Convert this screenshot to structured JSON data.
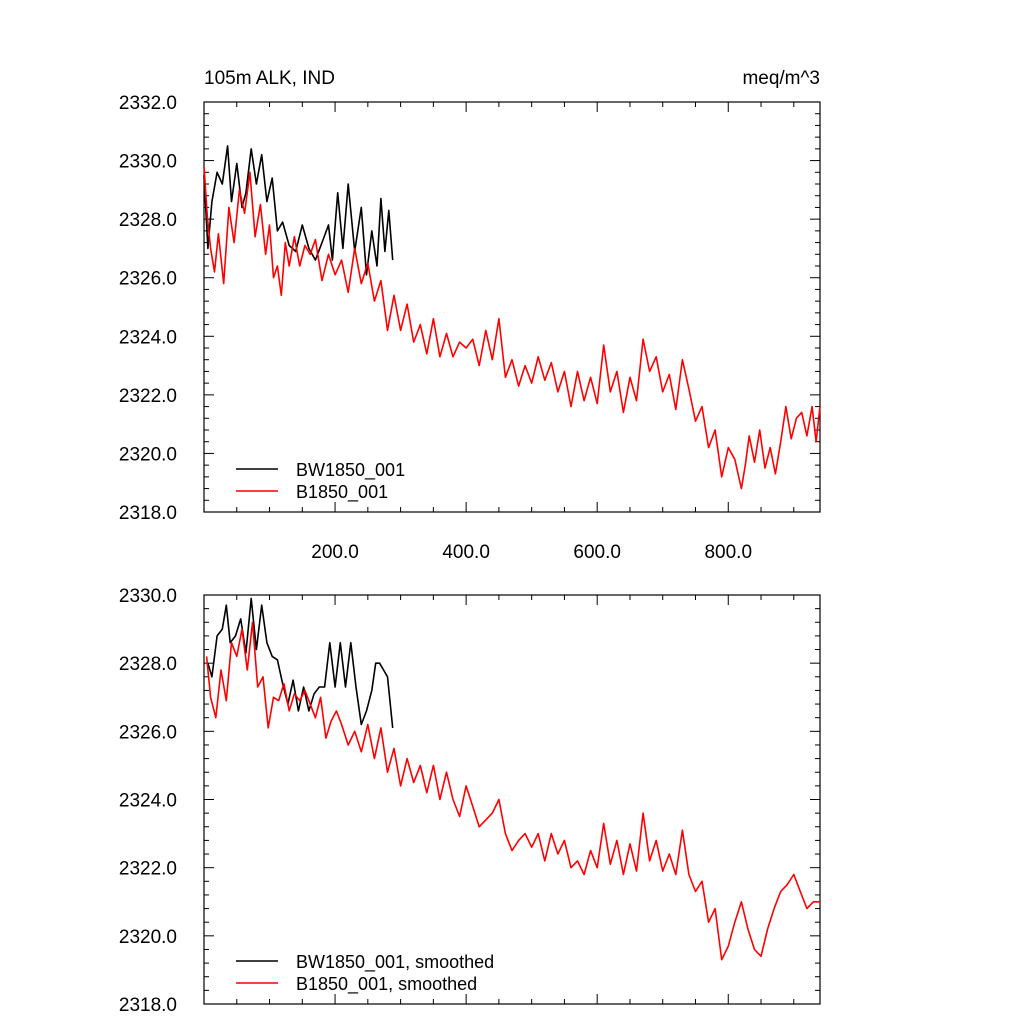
{
  "chart_data": [
    {
      "type": "line",
      "title_left": "105m ALK, IND",
      "title_right": "meq/m^3",
      "xlim": [
        0,
        940
      ],
      "ylim": [
        2318,
        2332
      ],
      "xticks": [
        200,
        400,
        600,
        800
      ],
      "xtick_labels": [
        "200.0",
        "400.0",
        "600.0",
        "800.0"
      ],
      "yticks": [
        2318,
        2320,
        2322,
        2324,
        2326,
        2328,
        2330,
        2332
      ],
      "ytick_labels": [
        "2318.0",
        "2320.0",
        "2322.0",
        "2324.0",
        "2326.0",
        "2328.0",
        "2330.0",
        "2332.0"
      ],
      "legend_position": "bottom-left",
      "series": [
        {
          "name": "BW1850_001",
          "color": "#000000",
          "x": [
            0,
            6,
            12,
            20,
            28,
            36,
            42,
            50,
            58,
            64,
            72,
            80,
            88,
            96,
            104,
            112,
            120,
            130,
            140,
            150,
            160,
            170,
            180,
            190,
            196,
            204,
            212,
            220,
            230,
            240,
            248,
            256,
            264,
            270,
            276,
            282,
            288
          ],
          "y": [
            2329.5,
            2327.0,
            2328.6,
            2329.6,
            2329.2,
            2330.5,
            2328.6,
            2329.9,
            2328.4,
            2328.9,
            2330.4,
            2329.2,
            2330.2,
            2328.6,
            2329.4,
            2327.6,
            2327.9,
            2327.1,
            2326.9,
            2327.8,
            2327.0,
            2326.6,
            2327.2,
            2327.8,
            2326.6,
            2328.9,
            2327.0,
            2329.2,
            2326.9,
            2328.4,
            2326.1,
            2327.6,
            2326.4,
            2328.7,
            2326.9,
            2328.3,
            2326.6
          ]
        },
        {
          "name": "B1850_001",
          "color": "#ff0000",
          "x": [
            0,
            5,
            10,
            16,
            22,
            30,
            38,
            46,
            54,
            62,
            70,
            78,
            86,
            94,
            100,
            106,
            112,
            118,
            124,
            130,
            138,
            146,
            154,
            162,
            170,
            180,
            190,
            200,
            210,
            220,
            230,
            240,
            250,
            260,
            270,
            280,
            290,
            300,
            310,
            320,
            330,
            340,
            350,
            360,
            370,
            380,
            390,
            400,
            410,
            420,
            430,
            440,
            450,
            460,
            470,
            480,
            490,
            500,
            510,
            520,
            530,
            540,
            550,
            560,
            570,
            580,
            590,
            600,
            610,
            620,
            630,
            640,
            650,
            660,
            670,
            680,
            690,
            700,
            710,
            720,
            730,
            740,
            750,
            760,
            770,
            780,
            790,
            800,
            810,
            820,
            826,
            832,
            840,
            848,
            856,
            864,
            872,
            880,
            888,
            896,
            904,
            912,
            920,
            928,
            934,
            940
          ],
          "y": [
            2329.8,
            2328.1,
            2327.0,
            2326.2,
            2327.5,
            2325.8,
            2328.4,
            2327.2,
            2329.0,
            2328.2,
            2329.6,
            2327.4,
            2328.5,
            2326.8,
            2327.8,
            2326.0,
            2326.4,
            2325.4,
            2327.2,
            2326.4,
            2327.4,
            2326.4,
            2327.1,
            2326.8,
            2327.3,
            2325.9,
            2326.8,
            2326.1,
            2326.6,
            2325.5,
            2327.0,
            2325.8,
            2326.5,
            2325.2,
            2325.9,
            2324.2,
            2325.4,
            2324.2,
            2325.1,
            2323.8,
            2324.4,
            2323.4,
            2324.6,
            2323.3,
            2324.1,
            2323.3,
            2323.8,
            2323.6,
            2323.9,
            2323.0,
            2324.2,
            2323.2,
            2324.6,
            2322.6,
            2323.2,
            2322.3,
            2323.0,
            2322.4,
            2323.3,
            2322.5,
            2323.1,
            2322.1,
            2322.8,
            2321.6,
            2322.8,
            2321.8,
            2322.6,
            2321.7,
            2323.7,
            2322.1,
            2322.8,
            2321.4,
            2322.6,
            2321.8,
            2323.9,
            2322.8,
            2323.3,
            2322.1,
            2322.7,
            2321.5,
            2323.2,
            2322.2,
            2321.1,
            2321.6,
            2320.2,
            2320.8,
            2319.2,
            2320.2,
            2319.8,
            2318.8,
            2319.6,
            2320.6,
            2319.7,
            2320.8,
            2319.5,
            2320.2,
            2319.3,
            2320.4,
            2321.6,
            2320.5,
            2321.2,
            2321.4,
            2320.6,
            2321.6,
            2320.4,
            2321.6
          ]
        }
      ]
    },
    {
      "type": "line",
      "xlim": [
        0,
        940
      ],
      "ylim": [
        2318,
        2330
      ],
      "yticks": [
        2318,
        2320,
        2322,
        2324,
        2326,
        2328,
        2330
      ],
      "ytick_labels": [
        "2318.0",
        "2320.0",
        "2322.0",
        "2324.0",
        "2326.0",
        "2328.0",
        "2330.0"
      ],
      "legend_position": "bottom-left",
      "series": [
        {
          "name": "BW1850_001, smoothed",
          "color": "#000000",
          "x": [
            6,
            12,
            20,
            28,
            34,
            40,
            48,
            56,
            64,
            72,
            80,
            88,
            96,
            104,
            112,
            120,
            128,
            136,
            144,
            152,
            160,
            168,
            176,
            184,
            192,
            200,
            208,
            216,
            224,
            232,
            240,
            248,
            256,
            262,
            268,
            274,
            280,
            288
          ],
          "y": [
            2328.0,
            2327.6,
            2328.8,
            2329.0,
            2329.7,
            2328.6,
            2328.8,
            2329.3,
            2328.3,
            2329.9,
            2328.4,
            2329.7,
            2328.6,
            2328.2,
            2328.1,
            2327.4,
            2326.8,
            2327.5,
            2326.6,
            2327.3,
            2326.6,
            2327.1,
            2327.3,
            2327.3,
            2328.6,
            2327.3,
            2328.6,
            2327.3,
            2328.6,
            2327.3,
            2326.2,
            2326.6,
            2327.2,
            2328.0,
            2328.0,
            2327.8,
            2327.6,
            2326.1
          ]
        },
        {
          "name": "B1850_001, smoothed",
          "color": "#ff0000",
          "x": [
            4,
            10,
            18,
            26,
            34,
            42,
            50,
            58,
            66,
            74,
            82,
            90,
            98,
            106,
            114,
            122,
            130,
            138,
            146,
            154,
            162,
            170,
            178,
            186,
            194,
            202,
            210,
            220,
            230,
            240,
            250,
            260,
            270,
            280,
            290,
            300,
            310,
            320,
            330,
            340,
            350,
            360,
            370,
            380,
            390,
            400,
            410,
            420,
            430,
            440,
            450,
            460,
            470,
            480,
            490,
            500,
            510,
            520,
            530,
            540,
            550,
            560,
            570,
            580,
            590,
            600,
            610,
            620,
            630,
            640,
            650,
            660,
            670,
            680,
            690,
            700,
            710,
            720,
            730,
            740,
            750,
            760,
            770,
            780,
            790,
            800,
            810,
            820,
            830,
            840,
            850,
            860,
            870,
            880,
            890,
            900,
            910,
            920,
            930,
            940
          ],
          "y": [
            2328.2,
            2327.0,
            2326.4,
            2327.8,
            2326.9,
            2328.6,
            2328.2,
            2329.0,
            2327.8,
            2329.2,
            2327.3,
            2327.6,
            2326.1,
            2327.0,
            2326.9,
            2327.4,
            2326.6,
            2327.1,
            2326.9,
            2327.2,
            2326.8,
            2326.4,
            2327.0,
            2325.8,
            2326.3,
            2326.6,
            2326.2,
            2325.6,
            2326.0,
            2325.4,
            2326.2,
            2325.2,
            2326.1,
            2324.8,
            2325.5,
            2324.4,
            2325.2,
            2324.5,
            2325.0,
            2324.2,
            2325.0,
            2324.0,
            2324.8,
            2324.0,
            2323.5,
            2324.4,
            2323.8,
            2323.2,
            2323.4,
            2323.6,
            2324.0,
            2323.0,
            2322.5,
            2322.8,
            2323.0,
            2322.6,
            2323.0,
            2322.2,
            2323.0,
            2322.4,
            2322.8,
            2322.0,
            2322.2,
            2321.8,
            2322.5,
            2322.0,
            2323.3,
            2322.1,
            2322.8,
            2321.8,
            2322.7,
            2321.9,
            2323.6,
            2322.2,
            2322.8,
            2321.9,
            2322.4,
            2321.8,
            2323.1,
            2321.8,
            2321.3,
            2321.6,
            2320.4,
            2320.8,
            2319.3,
            2319.7,
            2320.4,
            2321.0,
            2320.2,
            2319.6,
            2319.4,
            2320.2,
            2320.8,
            2321.3,
            2321.5,
            2321.8,
            2321.3,
            2320.8,
            2321.0,
            2321.0
          ]
        }
      ]
    }
  ]
}
